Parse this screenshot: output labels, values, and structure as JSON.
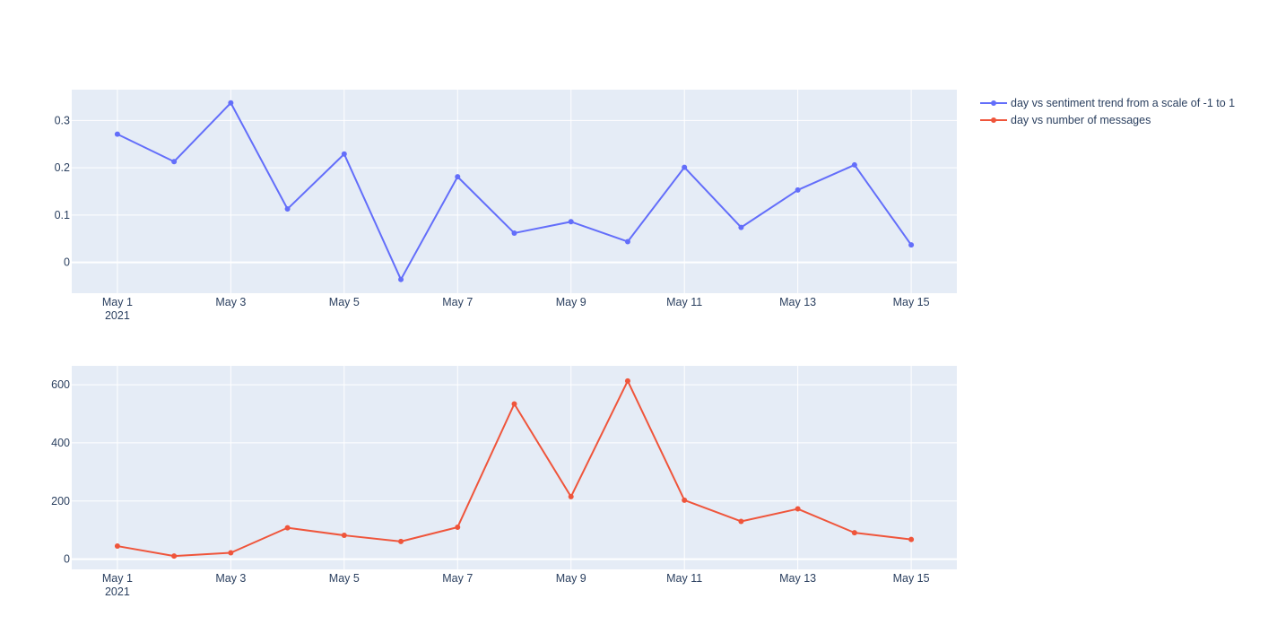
{
  "chart_data": [
    {
      "type": "line",
      "x": [
        "2021-05-01",
        "2021-05-02",
        "2021-05-03",
        "2021-05-04",
        "2021-05-05",
        "2021-05-06",
        "2021-05-07",
        "2021-05-08",
        "2021-05-09",
        "2021-05-10",
        "2021-05-11",
        "2021-05-12",
        "2021-05-13",
        "2021-05-14",
        "2021-05-15"
      ],
      "series": [
        {
          "name": "day vs sentiment trend from a scale of -1 to 1",
          "color": "#636efa",
          "values": [
            0.271,
            0.213,
            0.337,
            0.113,
            0.229,
            -0.036,
            0.181,
            0.062,
            0.086,
            0.044,
            0.201,
            0.074,
            0.153,
            0.206,
            0.037
          ]
        }
      ],
      "ylim": [
        -0.065,
        0.365
      ],
      "yticks": [
        0,
        0.1,
        0.2,
        0.3
      ],
      "ytick_labels": [
        "0",
        "0.1",
        "0.2",
        "0.3"
      ],
      "xticks": [
        "2021-05-01",
        "2021-05-03",
        "2021-05-05",
        "2021-05-07",
        "2021-05-09",
        "2021-05-11",
        "2021-05-13",
        "2021-05-15"
      ],
      "xtick_labels": [
        "May 1",
        "May 3",
        "May 5",
        "May 7",
        "May 9",
        "May 11",
        "May 13",
        "May 15"
      ],
      "xtick_sublabel": "2021",
      "grid": true,
      "plot_bg": "#e5ecf6"
    },
    {
      "type": "line",
      "x": [
        "2021-05-01",
        "2021-05-02",
        "2021-05-03",
        "2021-05-04",
        "2021-05-05",
        "2021-05-06",
        "2021-05-07",
        "2021-05-08",
        "2021-05-09",
        "2021-05-10",
        "2021-05-11",
        "2021-05-12",
        "2021-05-13",
        "2021-05-14",
        "2021-05-15"
      ],
      "series": [
        {
          "name": "day vs number of messages",
          "color": "#ef553b",
          "values": [
            45,
            11,
            22,
            108,
            82,
            61,
            110,
            534,
            215,
            613,
            203,
            130,
            173,
            91,
            68
          ]
        }
      ],
      "ylim": [
        -35,
        665
      ],
      "yticks": [
        0,
        200,
        400,
        600
      ],
      "ytick_labels": [
        "0",
        "200",
        "400",
        "600"
      ],
      "xticks": [
        "2021-05-01",
        "2021-05-03",
        "2021-05-05",
        "2021-05-07",
        "2021-05-09",
        "2021-05-11",
        "2021-05-13",
        "2021-05-15"
      ],
      "xtick_labels": [
        "May 1",
        "May 3",
        "May 5",
        "May 7",
        "May 9",
        "May 11",
        "May 13",
        "May 15"
      ],
      "xtick_sublabel": "2021",
      "grid": true,
      "plot_bg": "#e5ecf6"
    }
  ],
  "legend": {
    "placement": "top-right",
    "items": [
      {
        "label": "day vs sentiment trend from a scale of -1 to 1",
        "color": "#636efa"
      },
      {
        "label": "day vs number of messages",
        "color": "#ef553b"
      }
    ]
  }
}
